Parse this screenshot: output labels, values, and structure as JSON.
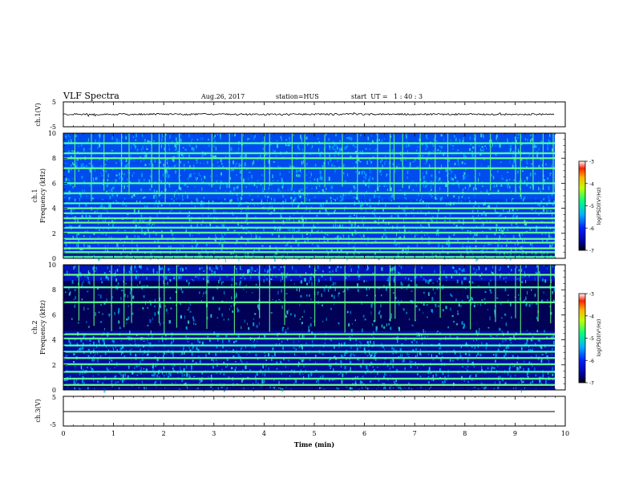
{
  "header": {
    "title": "VLF Spectra",
    "date": "Aug.26, 2017",
    "station": "station=HUS",
    "start": "start  UT =   1 : 40 : 3"
  },
  "chart_data": [
    {
      "id": "ch1-waveform",
      "type": "line",
      "ylabel": "ch.1(V)",
      "yticks": [
        "5",
        "-5"
      ],
      "ylim": [
        -5,
        5
      ],
      "xlim": [
        0,
        10
      ],
      "series": [
        {
          "values_mean": 0.0,
          "noise_amplitude": 0.35
        }
      ]
    },
    {
      "id": "ch1-spectrogram",
      "type": "heatmap",
      "ylabel_line1": "ch.1",
      "ylabel_line2": "Frequency  (kHz)",
      "yticks": [
        "0",
        "2",
        "4",
        "6",
        "8",
        "10"
      ],
      "ylim": [
        0,
        10
      ],
      "xlim": [
        0,
        10
      ],
      "colorbar": {
        "label": "log(PSD)(V²/Hz)",
        "ticks": [
          "-3",
          "-4",
          "-5",
          "-6",
          "-7"
        ],
        "range": [
          -7,
          -3
        ]
      },
      "line_freqs_khz": [
        0.1,
        0.5,
        0.8,
        1.25,
        1.55,
        2.05,
        2.45,
        2.85,
        3.2,
        3.6,
        4.0,
        4.4,
        5.2,
        6.0,
        7.2,
        8.0,
        8.4,
        9.2
      ],
      "impulse_times_min": [
        0.22,
        0.55,
        0.8,
        1.15,
        1.3,
        1.75,
        1.9,
        2.02,
        2.3,
        2.95,
        3.3,
        3.55,
        4.0,
        4.1,
        4.55,
        4.8,
        5.2,
        5.55,
        5.85,
        6.25,
        6.5,
        6.58,
        6.75,
        7.1,
        7.4,
        7.65,
        8.2,
        8.5,
        9.0,
        9.1,
        9.35,
        9.55,
        9.75
      ]
    },
    {
      "id": "ch2-spectrogram",
      "type": "heatmap",
      "ylabel_line1": "ch.2",
      "ylabel_line2": "Frequency  (kHz)",
      "yticks": [
        "0",
        "2",
        "4",
        "6",
        "8",
        "10"
      ],
      "ylim": [
        0,
        10
      ],
      "xlim": [
        0,
        10
      ],
      "colorbar": {
        "label": "log(PSD)(V²/Hz)",
        "ticks": [
          "-3",
          "-4",
          "-5",
          "-6",
          "-7"
        ],
        "range": [
          -7,
          -3
        ]
      },
      "line_freqs_khz": [
        0.4,
        0.9,
        1.45,
        2.05,
        2.55,
        3.05,
        3.55,
        4.1,
        4.45,
        7.0,
        8.2,
        9.2
      ],
      "impulse_times_min": [
        0.3,
        0.6,
        0.95,
        1.2,
        1.35,
        1.9,
        2.0,
        2.25,
        2.85,
        3.4,
        3.9,
        4.1,
        4.4,
        5.0,
        5.6,
        6.2,
        6.5,
        6.6,
        7.0,
        7.5,
        8.1,
        8.6,
        9.0,
        9.1,
        9.45,
        9.7
      ]
    },
    {
      "id": "ch3-waveform",
      "type": "line",
      "ylabel": "ch.3(V)",
      "yticks": [
        "5",
        "-5"
      ],
      "ylim": [
        -5,
        5
      ],
      "xlim": [
        0,
        10
      ],
      "series": [
        {
          "values_mean": 0.0,
          "noise_amplitude": 0.0
        }
      ]
    }
  ],
  "xaxis": {
    "label": "Time  (min)",
    "ticks": [
      "0",
      "1",
      "2",
      "3",
      "4",
      "5",
      "6",
      "7",
      "8",
      "9",
      "10"
    ]
  }
}
